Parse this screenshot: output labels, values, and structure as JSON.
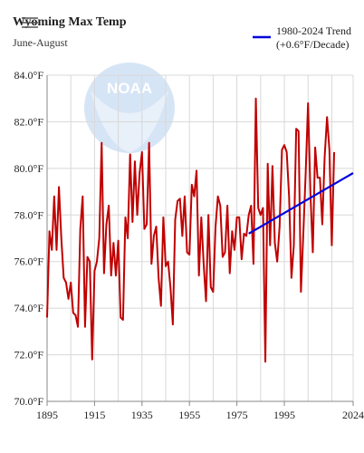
{
  "header": {
    "title": "Wyoming Max Temp",
    "subtitle": "June-August",
    "menu_icon": "hamburger-menu-icon"
  },
  "legend": {
    "label_line1": "1980-2024 Trend",
    "label_line2": "(+0.6°F/Decade)",
    "color": "#0000dd"
  },
  "watermark": {
    "text": "NOAA",
    "icon": "noaa-logo-icon",
    "color": "#a9c8f0"
  },
  "chart_data": {
    "type": "line",
    "title": "Wyoming Max Temp",
    "subtitle": "June-August",
    "xlim": [
      1895,
      2024
    ],
    "ylim": [
      70,
      84
    ],
    "x_ticks": [
      "1895",
      "1915",
      "1935",
      "1955",
      "1975",
      "1995",
      "2024"
    ],
    "y_ticks": [
      "70.0°F",
      "72.0°F",
      "74.0°F",
      "76.0°F",
      "78.0°F",
      "80.0°F",
      "82.0°F",
      "84.0°F"
    ],
    "grid": true,
    "legend_position": "top-right",
    "series": [
      {
        "color": "#c00000",
        "x_start": 1895,
        "values": [
          73.6,
          77.3,
          76.5,
          78.8,
          76.5,
          79.2,
          77.0,
          75.3,
          75.1,
          74.4,
          75.1,
          73.8,
          73.7,
          73.2,
          77.4,
          78.8,
          73.2,
          76.2,
          76.0,
          71.8,
          75.6,
          76.0,
          77.0,
          81.1,
          75.5,
          77.6,
          78.4,
          75.4,
          76.8,
          75.4,
          76.9,
          73.6,
          73.5,
          77.9,
          77.0,
          80.6,
          77.7,
          80.3,
          78.0,
          79.8,
          80.7,
          77.4,
          77.6,
          81.1,
          75.9,
          77.1,
          77.5,
          75.3,
          74.1,
          77.9,
          75.8,
          76.0,
          74.9,
          73.3,
          77.8,
          78.6,
          78.7,
          77.1,
          78.8,
          76.4,
          76.3,
          79.3,
          78.8,
          79.9,
          75.4,
          77.9,
          75.9,
          74.3,
          78.0,
          74.9,
          74.7,
          77.5,
          78.8,
          78.4,
          76.2,
          76.4,
          78.4,
          75.5,
          77.3,
          76.5,
          77.9,
          77.9,
          76.1,
          77.2,
          77.1,
          78.0,
          78.4,
          75.9,
          83.0,
          78.3,
          78.0,
          78.3,
          71.7,
          80.2,
          76.7,
          80.1,
          76.8,
          76.0,
          77.5,
          80.8,
          81.0,
          80.7,
          78.8,
          75.3,
          76.7,
          81.7,
          81.6,
          74.7,
          77.2,
          79.8,
          82.8,
          78.9,
          76.4,
          80.9,
          79.6,
          79.6,
          77.6,
          80.5,
          82.2,
          80.8,
          76.7,
          80.7
        ]
      },
      {
        "name": "1980-2024 Trend",
        "color": "#0000dd",
        "x": [
          1980,
          2024
        ],
        "values": [
          77.2,
          79.8
        ]
      }
    ]
  }
}
